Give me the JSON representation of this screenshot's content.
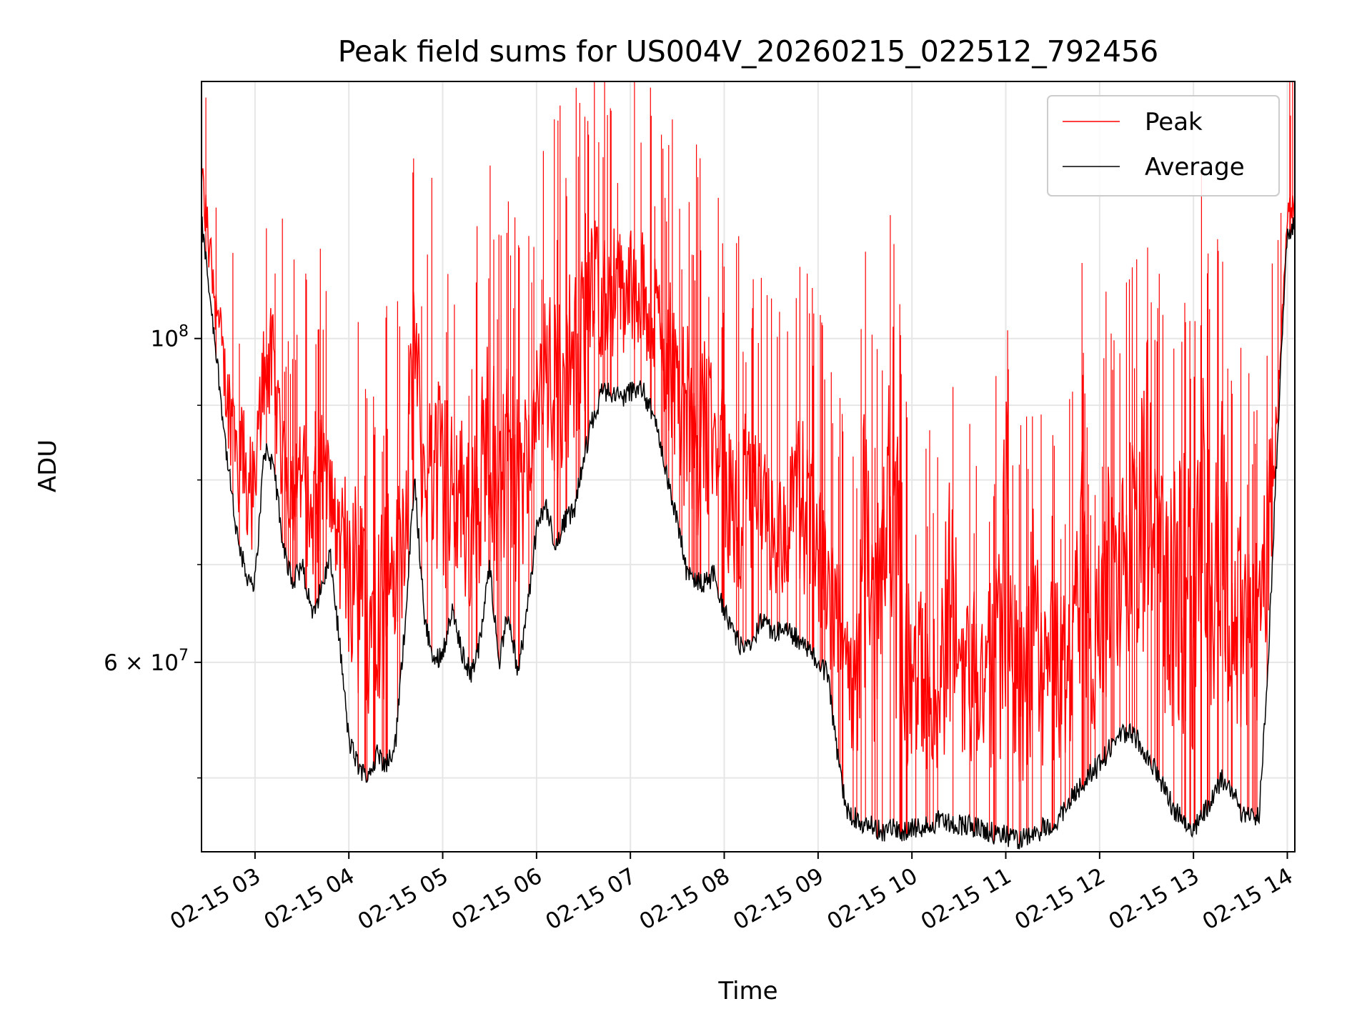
{
  "chart_data": {
    "type": "line",
    "title": "Peak field sums for US004V_20260215_022512_792456",
    "xlabel": "Time",
    "ylabel": "ADU",
    "yscale": "log",
    "ylim": [
      44500000,
      150000000
    ],
    "xlim_hours": [
      2.43,
      14.08
    ],
    "grid": true,
    "legend_position": "top-right",
    "x_ticks": [
      {
        "value": 3,
        "label": "02-15 03"
      },
      {
        "value": 4,
        "label": "02-15 04"
      },
      {
        "value": 5,
        "label": "02-15 05"
      },
      {
        "value": 6,
        "label": "02-15 06"
      },
      {
        "value": 7,
        "label": "02-15 07"
      },
      {
        "value": 8,
        "label": "02-15 08"
      },
      {
        "value": 9,
        "label": "02-15 09"
      },
      {
        "value": 10,
        "label": "02-15 10"
      },
      {
        "value": 11,
        "label": "02-15 11"
      },
      {
        "value": 12,
        "label": "02-15 12"
      },
      {
        "value": 13,
        "label": "02-15 13"
      },
      {
        "value": 14,
        "label": "02-15 14"
      }
    ],
    "y_major_ticks": [
      {
        "value": 100000000,
        "base": "10",
        "exp": "8"
      },
      {
        "value": 60000000,
        "base": "6 × 10",
        "exp": "7"
      }
    ],
    "y_minor_ticks": [
      50000000,
      70000000,
      80000000,
      90000000
    ],
    "series": [
      {
        "name": "Peak",
        "color": "#ff0000",
        "x_hours": [
          2.43,
          2.5,
          2.6,
          2.7,
          2.8,
          2.9,
          3.0,
          3.1,
          3.2,
          3.3,
          3.4,
          3.5,
          3.6,
          3.7,
          3.8,
          3.9,
          4.0,
          4.1,
          4.2,
          4.3,
          4.4,
          4.5,
          4.6,
          4.7,
          4.8,
          4.9,
          5.0,
          5.1,
          5.2,
          5.3,
          5.4,
          5.5,
          5.6,
          5.7,
          5.8,
          5.9,
          6.0,
          6.1,
          6.2,
          6.3,
          6.4,
          6.5,
          6.6,
          6.7,
          6.8,
          6.9,
          7.0,
          7.1,
          7.2,
          7.3,
          7.4,
          7.5,
          7.6,
          7.7,
          7.8,
          7.9,
          8.0,
          8.1,
          8.2,
          8.3,
          8.4,
          8.5,
          8.6,
          8.7,
          8.8,
          8.9,
          9.0,
          9.1,
          9.2,
          9.3,
          9.4,
          9.5,
          9.6,
          9.7,
          9.8,
          9.9,
          10.0,
          10.1,
          10.2,
          10.3,
          10.4,
          10.5,
          10.6,
          10.7,
          10.8,
          10.9,
          11.0,
          11.1,
          11.2,
          11.3,
          11.4,
          11.5,
          11.6,
          11.7,
          11.8,
          11.9,
          12.0,
          12.1,
          12.2,
          12.3,
          12.4,
          12.5,
          12.6,
          12.7,
          12.8,
          12.9,
          13.0,
          13.1,
          13.2,
          13.3,
          13.4,
          13.5,
          13.6,
          13.7,
          13.8,
          13.9,
          14.0,
          14.08
        ],
        "values": [
          138000000,
          125000000,
          112000000,
          100000000,
          98000000,
          92000000,
          88000000,
          112000000,
          108000000,
          95000000,
          90000000,
          93000000,
          85000000,
          95000000,
          88000000,
          80000000,
          92000000,
          84000000,
          79000000,
          80000000,
          86000000,
          87000000,
          88000000,
          118000000,
          94000000,
          104000000,
          100000000,
          93000000,
          97000000,
          88000000,
          99000000,
          110000000,
          95000000,
          104000000,
          96000000,
          99000000,
          102000000,
          115000000,
          112000000,
          120000000,
          117000000,
          120000000,
          128000000,
          124000000,
          126000000,
          124000000,
          125000000,
          125000000,
          120000000,
          118000000,
          116000000,
          112000000,
          108000000,
          107000000,
          108000000,
          102000000,
          96000000,
          90000000,
          95000000,
          92000000,
          88000000,
          85000000,
          84000000,
          87000000,
          94000000,
          92000000,
          84000000,
          78000000,
          74000000,
          72000000,
          75000000,
          100000000,
          80000000,
          90000000,
          117000000,
          75000000,
          70000000,
          72000000,
          68000000,
          70000000,
          90000000,
          75000000,
          72000000,
          73000000,
          71000000,
          74000000,
          104000000,
          72000000,
          70000000,
          84000000,
          68000000,
          74000000,
          71000000,
          72000000,
          95000000,
          71000000,
          78000000,
          88000000,
          81000000,
          92000000,
          90000000,
          110000000,
          95000000,
          86000000,
          88000000,
          90000000,
          89000000,
          106000000,
          84000000,
          101000000,
          75000000,
          84000000,
          76000000,
          80000000,
          91000000,
          95000000,
          125000000,
          128000000
        ]
      },
      {
        "name": "Average",
        "color": "#000000",
        "x_hours": [
          2.43,
          2.5,
          2.6,
          2.7,
          2.8,
          2.9,
          3.0,
          3.1,
          3.2,
          3.3,
          3.4,
          3.5,
          3.6,
          3.7,
          3.8,
          3.9,
          4.0,
          4.1,
          4.2,
          4.3,
          4.4,
          4.5,
          4.6,
          4.7,
          4.8,
          4.9,
          5.0,
          5.1,
          5.2,
          5.3,
          5.4,
          5.5,
          5.6,
          5.7,
          5.8,
          5.9,
          6.0,
          6.1,
          6.2,
          6.3,
          6.4,
          6.5,
          6.6,
          6.7,
          6.8,
          6.9,
          7.0,
          7.1,
          7.2,
          7.3,
          7.4,
          7.5,
          7.6,
          7.7,
          7.8,
          7.9,
          8.0,
          8.1,
          8.2,
          8.3,
          8.4,
          8.5,
          8.6,
          8.7,
          8.8,
          8.9,
          9.0,
          9.1,
          9.2,
          9.3,
          9.4,
          9.5,
          9.6,
          9.7,
          9.8,
          9.9,
          10.0,
          10.1,
          10.2,
          10.3,
          10.4,
          10.5,
          10.6,
          10.7,
          10.8,
          10.9,
          11.0,
          11.1,
          11.2,
          11.3,
          11.4,
          11.5,
          11.6,
          11.7,
          11.8,
          11.9,
          12.0,
          12.1,
          12.2,
          12.3,
          12.4,
          12.5,
          12.6,
          12.7,
          12.8,
          12.9,
          13.0,
          13.1,
          13.2,
          13.3,
          13.4,
          13.5,
          13.6,
          13.7,
          13.8,
          13.9,
          14.0,
          14.08
        ],
        "values": [
          120000000,
          110000000,
          96000000,
          83000000,
          74000000,
          69000000,
          68000000,
          84000000,
          82000000,
          72000000,
          68000000,
          70000000,
          65000000,
          67000000,
          71000000,
          62000000,
          53000000,
          51000000,
          50000000,
          52000000,
          51000000,
          53000000,
          64000000,
          80000000,
          65000000,
          60000000,
          61000000,
          65000000,
          61000000,
          59000000,
          62000000,
          70000000,
          60000000,
          65000000,
          59000000,
          65000000,
          74000000,
          77000000,
          72000000,
          75000000,
          76000000,
          83000000,
          88000000,
          92000000,
          92000000,
          91000000,
          92000000,
          93000000,
          90000000,
          86000000,
          80000000,
          75000000,
          69000000,
          68000000,
          68000000,
          69000000,
          65000000,
          63000000,
          61000000,
          62000000,
          64000000,
          63000000,
          63000000,
          63000000,
          62000000,
          61000000,
          60000000,
          59000000,
          52000000,
          47500000,
          47000000,
          46500000,
          46200000,
          46000000,
          46200000,
          46000000,
          46100000,
          46300000,
          46500000,
          46800000,
          46600000,
          46500000,
          46400000,
          46200000,
          45900000,
          45800000,
          45600000,
          45400000,
          45400000,
          45700000,
          46200000,
          46500000,
          47100000,
          48500000,
          49500000,
          50400000,
          51000000,
          52400000,
          53200000,
          54000000,
          53200000,
          52000000,
          50400000,
          49000000,
          47500000,
          46600000,
          46000000,
          47300000,
          48400000,
          50000000,
          49200000,
          47600000,
          46800000,
          47200000,
          61000000,
          87000000,
          118000000,
          120000000
        ]
      }
    ]
  }
}
